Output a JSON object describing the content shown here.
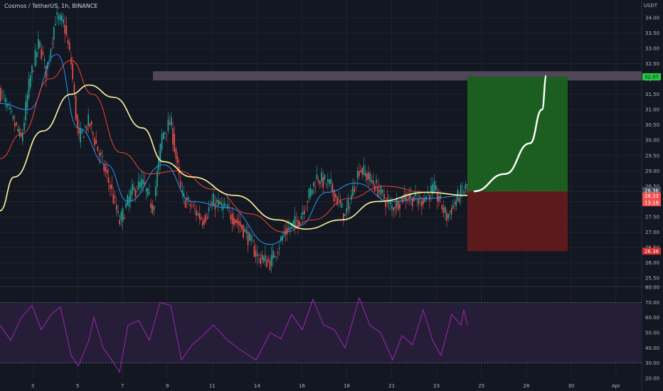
{
  "header": {
    "title": "Cosmos / TetherUS, 1h, BINANCE",
    "currency": "USDT"
  },
  "colors": {
    "background": "#131722",
    "grid": "#1e222d",
    "candle_up": "#26a69a",
    "candle_down": "#ef5350",
    "ma_fast": "#2196f3",
    "ma_mid": "#f44336",
    "ma_slow": "#fff59d",
    "rsi_line": "#9c27b0",
    "target_zone": "#1b5e20",
    "stop_zone": "#5d1a1d",
    "resistance_band": "#564c5e"
  },
  "chart_data": [
    {
      "type": "candlestick",
      "title": "Cosmos / TetherUS, 1h, BINANCE",
      "x_tick_labels": [
        "3",
        "5",
        "7",
        "9",
        "11",
        "14",
        "16",
        "18",
        "21",
        "23",
        "25",
        "28",
        "30",
        "Apr"
      ],
      "y_tick_labels": [
        "34.00",
        "33.50",
        "33.00",
        "32.50",
        "32.00",
        "31.50",
        "31.00",
        "30.50",
        "30.00",
        "29.50",
        "29.00",
        "28.50",
        "28.00",
        "27.50",
        "27.00",
        "26.50",
        "26.00",
        "25.50"
      ],
      "ylim": [
        25.25,
        34.25
      ],
      "grid": true,
      "price_path": [
        {
          "x": 0,
          "y": 31.6
        },
        {
          "x": 15,
          "y": 30.8
        },
        {
          "x": 30,
          "y": 30.0
        },
        {
          "x": 42,
          "y": 32.0
        },
        {
          "x": 55,
          "y": 33.2
        },
        {
          "x": 65,
          "y": 32.2
        },
        {
          "x": 78,
          "y": 34.0
        },
        {
          "x": 90,
          "y": 33.8
        },
        {
          "x": 100,
          "y": 32.5
        },
        {
          "x": 110,
          "y": 30.0
        },
        {
          "x": 125,
          "y": 30.6
        },
        {
          "x": 140,
          "y": 29.5
        },
        {
          "x": 155,
          "y": 28.5
        },
        {
          "x": 168,
          "y": 27.3
        },
        {
          "x": 185,
          "y": 28.3
        },
        {
          "x": 200,
          "y": 28.6
        },
        {
          "x": 215,
          "y": 27.8
        },
        {
          "x": 228,
          "y": 30.2
        },
        {
          "x": 240,
          "y": 30.6
        },
        {
          "x": 255,
          "y": 28.2
        },
        {
          "x": 270,
          "y": 27.8
        },
        {
          "x": 285,
          "y": 27.4
        },
        {
          "x": 300,
          "y": 28.0
        },
        {
          "x": 320,
          "y": 27.7
        },
        {
          "x": 345,
          "y": 27.0
        },
        {
          "x": 362,
          "y": 26.2
        },
        {
          "x": 380,
          "y": 26.0
        },
        {
          "x": 400,
          "y": 27.0
        },
        {
          "x": 420,
          "y": 27.4
        },
        {
          "x": 445,
          "y": 28.8
        },
        {
          "x": 465,
          "y": 28.5
        },
        {
          "x": 485,
          "y": 27.5
        },
        {
          "x": 505,
          "y": 29.1
        },
        {
          "x": 525,
          "y": 28.6
        },
        {
          "x": 550,
          "y": 27.8
        },
        {
          "x": 570,
          "y": 28.2
        },
        {
          "x": 590,
          "y": 28.0
        },
        {
          "x": 610,
          "y": 28.4
        },
        {
          "x": 628,
          "y": 27.5
        },
        {
          "x": 645,
          "y": 28.2
        },
        {
          "x": 657,
          "y": 28.5
        }
      ],
      "x_range": [
        0,
        866
      ],
      "moving_averages": [
        {
          "color": "#2196f3",
          "path": [
            {
              "x": 0,
              "y": 31.2
            },
            {
              "x": 40,
              "y": 31.0
            },
            {
              "x": 80,
              "y": 32.8
            },
            {
              "x": 110,
              "y": 30.4
            },
            {
              "x": 150,
              "y": 29.2
            },
            {
              "x": 180,
              "y": 28.0
            },
            {
              "x": 230,
              "y": 29.2
            },
            {
              "x": 270,
              "y": 28.0
            },
            {
              "x": 320,
              "y": 27.8
            },
            {
              "x": 380,
              "y": 26.6
            },
            {
              "x": 420,
              "y": 27.2
            },
            {
              "x": 460,
              "y": 28.3
            },
            {
              "x": 500,
              "y": 28.6
            },
            {
              "x": 550,
              "y": 28.0
            },
            {
              "x": 600,
              "y": 28.1
            },
            {
              "x": 657,
              "y": 28.2
            }
          ]
        },
        {
          "color": "#f44336",
          "path": [
            {
              "x": 0,
              "y": 29.4
            },
            {
              "x": 30,
              "y": 30.2
            },
            {
              "x": 70,
              "y": 32.0
            },
            {
              "x": 100,
              "y": 32.6
            },
            {
              "x": 130,
              "y": 31.5
            },
            {
              "x": 170,
              "y": 29.6
            },
            {
              "x": 210,
              "y": 28.9
            },
            {
              "x": 250,
              "y": 29.0
            },
            {
              "x": 300,
              "y": 28.4
            },
            {
              "x": 350,
              "y": 27.6
            },
            {
              "x": 400,
              "y": 27.0
            },
            {
              "x": 440,
              "y": 27.4
            },
            {
              "x": 490,
              "y": 28.1
            },
            {
              "x": 540,
              "y": 28.5
            },
            {
              "x": 600,
              "y": 28.3
            },
            {
              "x": 657,
              "y": 28.2
            }
          ]
        },
        {
          "color": "#fff59d",
          "path": [
            {
              "x": 0,
              "y": 27.7
            },
            {
              "x": 20,
              "y": 28.8
            },
            {
              "x": 60,
              "y": 30.3
            },
            {
              "x": 100,
              "y": 31.5
            },
            {
              "x": 125,
              "y": 31.8
            },
            {
              "x": 160,
              "y": 31.4
            },
            {
              "x": 200,
              "y": 30.4
            },
            {
              "x": 230,
              "y": 29.3
            },
            {
              "x": 270,
              "y": 28.8
            },
            {
              "x": 330,
              "y": 28.2
            },
            {
              "x": 390,
              "y": 27.4
            },
            {
              "x": 430,
              "y": 27.1
            },
            {
              "x": 480,
              "y": 27.4
            },
            {
              "x": 530,
              "y": 28.0
            },
            {
              "x": 600,
              "y": 28.3
            },
            {
              "x": 657,
              "y": 28.2
            }
          ]
        }
      ],
      "resistance_band": {
        "from": 31.95,
        "to": 32.25,
        "x_start": 215
      },
      "position": {
        "entry": 28.33,
        "target": 32.07,
        "stop": 26.38,
        "x_start": 657,
        "x_end": 798
      },
      "projection_curve": [
        {
          "x": 666,
          "y": 28.33
        },
        {
          "x": 710,
          "y": 28.9
        },
        {
          "x": 745,
          "y": 29.9
        },
        {
          "x": 762,
          "y": 31.0
        },
        {
          "x": 768,
          "y": 32.1
        }
      ],
      "price_labels": [
        {
          "value": "32.07",
          "y": 32.07,
          "bg": "#26c941",
          "fg": "#131722"
        },
        {
          "value": "28.36",
          "y": 28.36,
          "bg": "#4a4e58",
          "fg": "#ffffff"
        },
        {
          "value": "28.33",
          "y": 28.18,
          "bg": "#ef5350",
          "fg": "#ffffff"
        },
        {
          "value": "13:18",
          "y": 27.96,
          "bg": "#ef5350",
          "fg": "#ffffff"
        },
        {
          "value": "26.38",
          "y": 26.38,
          "bg": "#d32f2f",
          "fg": "#ffffff"
        }
      ]
    },
    {
      "type": "line",
      "name": "RSI",
      "y_tick_labels": [
        "80.00",
        "70.00",
        "60.00",
        "50.00",
        "40.00",
        "30.00",
        "20.00"
      ],
      "ylim": [
        20,
        80
      ],
      "bands": [
        30,
        70
      ],
      "path": [
        {
          "x": 0,
          "y": 55
        },
        {
          "x": 15,
          "y": 45
        },
        {
          "x": 30,
          "y": 60
        },
        {
          "x": 45,
          "y": 68
        },
        {
          "x": 58,
          "y": 52
        },
        {
          "x": 72,
          "y": 62
        },
        {
          "x": 85,
          "y": 67
        },
        {
          "x": 100,
          "y": 35
        },
        {
          "x": 110,
          "y": 28
        },
        {
          "x": 125,
          "y": 45
        },
        {
          "x": 132,
          "y": 60
        },
        {
          "x": 145,
          "y": 40
        },
        {
          "x": 160,
          "y": 30
        },
        {
          "x": 168,
          "y": 24
        },
        {
          "x": 180,
          "y": 55
        },
        {
          "x": 195,
          "y": 58
        },
        {
          "x": 210,
          "y": 45
        },
        {
          "x": 225,
          "y": 70
        },
        {
          "x": 240,
          "y": 68
        },
        {
          "x": 255,
          "y": 32
        },
        {
          "x": 270,
          "y": 42
        },
        {
          "x": 285,
          "y": 48
        },
        {
          "x": 300,
          "y": 55
        },
        {
          "x": 320,
          "y": 45
        },
        {
          "x": 340,
          "y": 38
        },
        {
          "x": 360,
          "y": 32
        },
        {
          "x": 380,
          "y": 50
        },
        {
          "x": 395,
          "y": 46
        },
        {
          "x": 410,
          "y": 62
        },
        {
          "x": 425,
          "y": 52
        },
        {
          "x": 440,
          "y": 72
        },
        {
          "x": 455,
          "y": 55
        },
        {
          "x": 470,
          "y": 52
        },
        {
          "x": 485,
          "y": 40
        },
        {
          "x": 505,
          "y": 73
        },
        {
          "x": 520,
          "y": 55
        },
        {
          "x": 535,
          "y": 50
        },
        {
          "x": 552,
          "y": 32
        },
        {
          "x": 565,
          "y": 48
        },
        {
          "x": 580,
          "y": 42
        },
        {
          "x": 595,
          "y": 65
        },
        {
          "x": 608,
          "y": 45
        },
        {
          "x": 620,
          "y": 35
        },
        {
          "x": 635,
          "y": 62
        },
        {
          "x": 648,
          "y": 55
        },
        {
          "x": 652,
          "y": 65
        },
        {
          "x": 657,
          "y": 55
        }
      ]
    }
  ]
}
